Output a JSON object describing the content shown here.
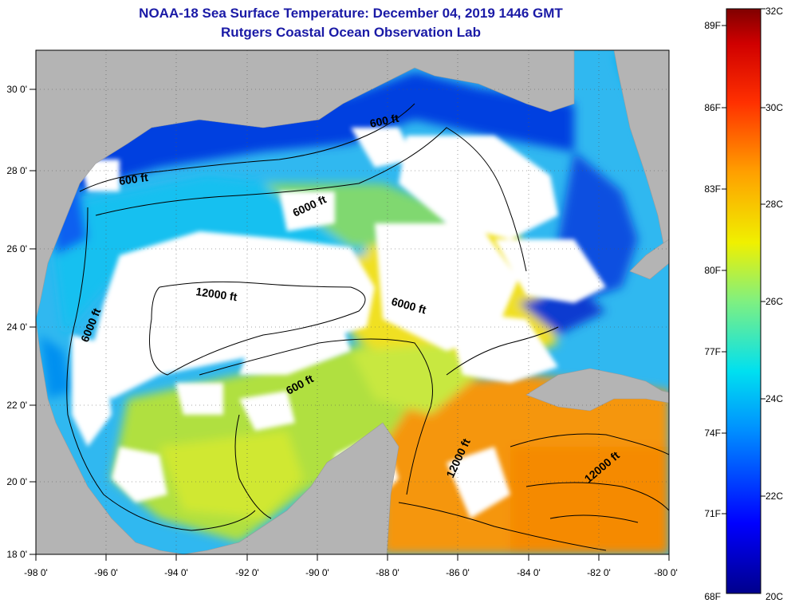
{
  "title": "NOAA-18 Sea Surface Temperature:  December 04, 2019 1446 GMT",
  "subtitle": "Rutgers Coastal Ocean Observation Lab",
  "map": {
    "lon_range": [
      -98,
      -80
    ],
    "lat_range": [
      18,
      31
    ],
    "lon_ticks": [
      "-98 0'",
      "-96 0'",
      "-94 0'",
      "-92 0'",
      "-90 0'",
      "-88 0'",
      "-86 0'",
      "-84 0'",
      "-82 0'",
      "-80 0'"
    ],
    "lat_ticks": [
      "30 0'",
      "28 0'",
      "26 0'",
      "24 0'",
      "22 0'",
      "20 0'",
      "18 0'"
    ],
    "contour_labels": [
      "600 ft",
      "600 ft",
      "6000 ft",
      "12000 ft",
      "6000 ft",
      "6000 ft",
      "600 ft",
      "12000 ft",
      "12000 ft"
    ]
  },
  "colorbar": {
    "fahrenheit": [
      "89F",
      "86F",
      "83F",
      "80F",
      "77F",
      "74F",
      "71F",
      "68F"
    ],
    "celsius": [
      "32C",
      "30C",
      "28C",
      "26C",
      "24C",
      "22C",
      "20C"
    ]
  },
  "colors": {
    "land": "#b4b4b4",
    "cloud": "#ffffff",
    "title": "#1a1aa6"
  }
}
